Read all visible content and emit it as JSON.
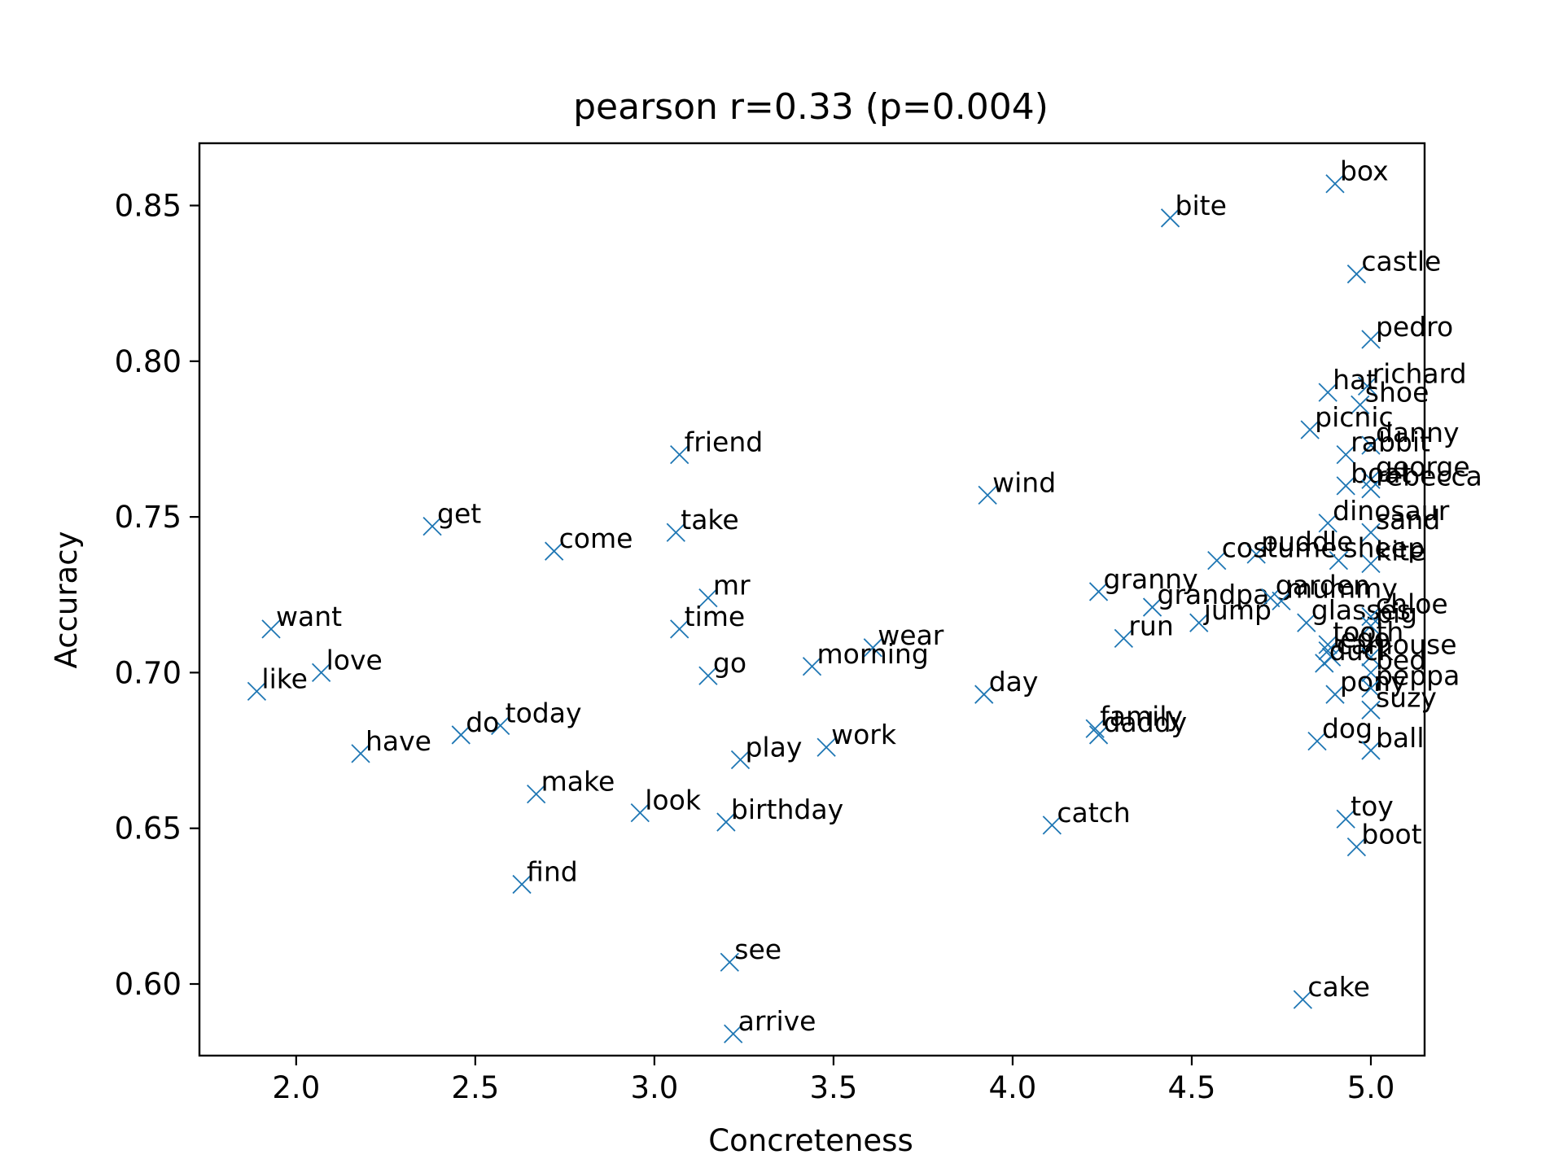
{
  "chart_data": {
    "type": "scatter",
    "title": "pearson r=0.33 (p=0.004)",
    "xlabel": "Concreteness",
    "ylabel": "Accuracy",
    "xlim": [
      1.73,
      5.15
    ],
    "ylim": [
      0.577,
      0.87
    ],
    "xticks": [
      2.0,
      2.5,
      3.0,
      3.5,
      4.0,
      4.5,
      5.0
    ],
    "yticks": [
      0.6,
      0.65,
      0.7,
      0.75,
      0.8,
      0.85
    ],
    "xtick_labels": [
      "2.0",
      "2.5",
      "3.0",
      "3.5",
      "4.0",
      "4.5",
      "5.0"
    ],
    "ytick_labels": [
      "0.60",
      "0.65",
      "0.70",
      "0.75",
      "0.80",
      "0.85"
    ],
    "grid": false,
    "marker": "x",
    "marker_color": "#1f77b4",
    "points": [
      {
        "label": "box",
        "x": 4.9,
        "y": 0.857
      },
      {
        "label": "bite",
        "x": 4.44,
        "y": 0.846
      },
      {
        "label": "castle",
        "x": 4.96,
        "y": 0.828
      },
      {
        "label": "pedro",
        "x": 5.0,
        "y": 0.807
      },
      {
        "label": "richard",
        "x": 4.99,
        "y": 0.792
      },
      {
        "label": "hat",
        "x": 4.88,
        "y": 0.79
      },
      {
        "label": "shoe",
        "x": 4.97,
        "y": 0.786
      },
      {
        "label": "picnic",
        "x": 4.83,
        "y": 0.778
      },
      {
        "label": "danny",
        "x": 5.0,
        "y": 0.773
      },
      {
        "label": "rabbit",
        "x": 4.93,
        "y": 0.77
      },
      {
        "label": "george",
        "x": 5.0,
        "y": 0.762
      },
      {
        "label": "boat",
        "x": 4.93,
        "y": 0.76
      },
      {
        "label": "rebecca",
        "x": 5.0,
        "y": 0.759
      },
      {
        "label": "dinosaur",
        "x": 4.88,
        "y": 0.748
      },
      {
        "label": "sand",
        "x": 5.0,
        "y": 0.745
      },
      {
        "label": "kite",
        "x": 5.0,
        "y": 0.735
      },
      {
        "label": "puddle",
        "x": 4.68,
        "y": 0.738
      },
      {
        "label": "costume",
        "x": 4.57,
        "y": 0.736
      },
      {
        "label": "sheep",
        "x": 4.91,
        "y": 0.736
      },
      {
        "label": "granny",
        "x": 4.24,
        "y": 0.726
      },
      {
        "label": "grandpa",
        "x": 4.39,
        "y": 0.721
      },
      {
        "label": "garden",
        "x": 4.72,
        "y": 0.724
      },
      {
        "label": "mummy",
        "x": 4.75,
        "y": 0.723
      },
      {
        "label": "glasses",
        "x": 4.82,
        "y": 0.716
      },
      {
        "label": "chloe",
        "x": 5.0,
        "y": 0.718
      },
      {
        "label": "pig",
        "x": 5.0,
        "y": 0.715
      },
      {
        "label": "jump",
        "x": 4.52,
        "y": 0.716
      },
      {
        "label": "run",
        "x": 4.31,
        "y": 0.711
      },
      {
        "label": "tooth",
        "x": 4.88,
        "y": 0.709
      },
      {
        "label": "lego",
        "x": 4.88,
        "y": 0.707
      },
      {
        "label": "car",
        "x": 4.89,
        "y": 0.705
      },
      {
        "label": "house",
        "x": 5.0,
        "y": 0.705
      },
      {
        "label": "duck",
        "x": 4.87,
        "y": 0.703
      },
      {
        "label": "bed",
        "x": 5.0,
        "y": 0.7
      },
      {
        "label": "pony",
        "x": 4.9,
        "y": 0.693
      },
      {
        "label": "peppa",
        "x": 5.0,
        "y": 0.695
      },
      {
        "label": "suzy",
        "x": 5.0,
        "y": 0.688
      },
      {
        "label": "dog",
        "x": 4.85,
        "y": 0.678
      },
      {
        "label": "ball",
        "x": 5.0,
        "y": 0.675
      },
      {
        "label": "toy",
        "x": 4.93,
        "y": 0.653
      },
      {
        "label": "boot",
        "x": 4.96,
        "y": 0.644
      },
      {
        "label": "cake",
        "x": 4.81,
        "y": 0.595
      },
      {
        "label": "family",
        "x": 4.23,
        "y": 0.682
      },
      {
        "label": "daddy",
        "x": 4.24,
        "y": 0.68
      },
      {
        "label": "catch",
        "x": 4.11,
        "y": 0.651
      },
      {
        "label": "wind",
        "x": 3.93,
        "y": 0.757
      },
      {
        "label": "day",
        "x": 3.92,
        "y": 0.693
      },
      {
        "label": "wear",
        "x": 3.61,
        "y": 0.708
      },
      {
        "label": "morning",
        "x": 3.44,
        "y": 0.702
      },
      {
        "label": "work",
        "x": 3.48,
        "y": 0.676
      },
      {
        "label": "friend",
        "x": 3.07,
        "y": 0.77
      },
      {
        "label": "take",
        "x": 3.06,
        "y": 0.745
      },
      {
        "label": "mr",
        "x": 3.15,
        "y": 0.724
      },
      {
        "label": "time",
        "x": 3.07,
        "y": 0.714
      },
      {
        "label": "go",
        "x": 3.15,
        "y": 0.699
      },
      {
        "label": "play",
        "x": 3.24,
        "y": 0.672
      },
      {
        "label": "birthday",
        "x": 3.2,
        "y": 0.652
      },
      {
        "label": "look",
        "x": 2.96,
        "y": 0.655
      },
      {
        "label": "see",
        "x": 3.21,
        "y": 0.607
      },
      {
        "label": "arrive",
        "x": 3.22,
        "y": 0.584
      },
      {
        "label": "get",
        "x": 2.38,
        "y": 0.747
      },
      {
        "label": "come",
        "x": 2.72,
        "y": 0.739
      },
      {
        "label": "today",
        "x": 2.57,
        "y": 0.683
      },
      {
        "label": "do",
        "x": 2.46,
        "y": 0.68
      },
      {
        "label": "make",
        "x": 2.67,
        "y": 0.661
      },
      {
        "label": "find",
        "x": 2.63,
        "y": 0.632
      },
      {
        "label": "want",
        "x": 1.93,
        "y": 0.714
      },
      {
        "label": "love",
        "x": 2.07,
        "y": 0.7
      },
      {
        "label": "like",
        "x": 1.89,
        "y": 0.694
      },
      {
        "label": "have",
        "x": 2.18,
        "y": 0.674
      }
    ]
  }
}
